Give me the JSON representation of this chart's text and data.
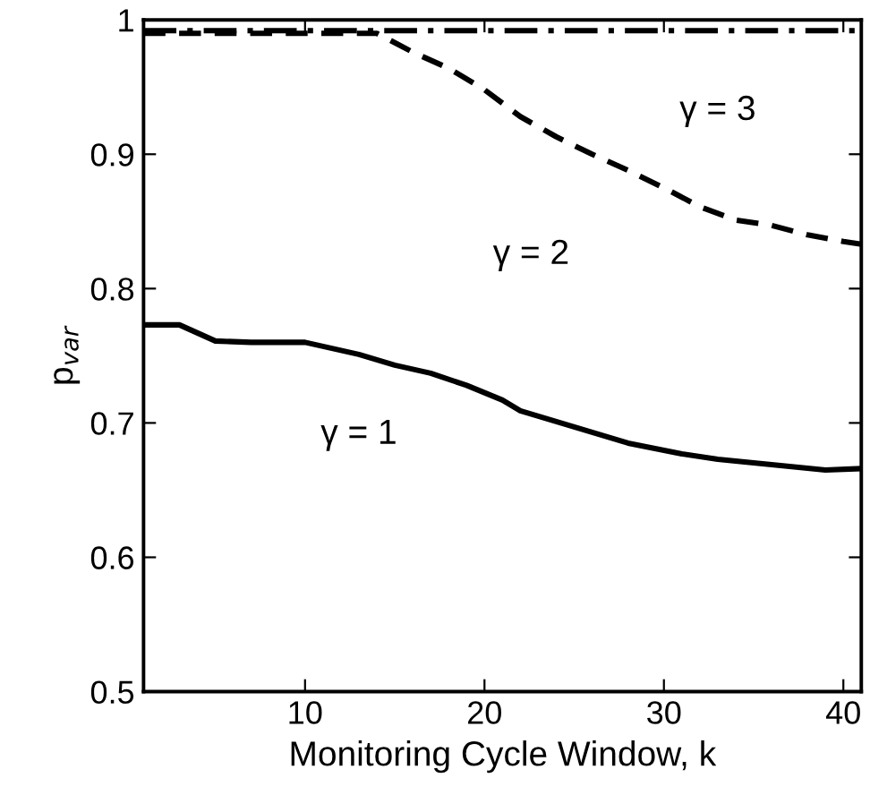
{
  "chart_data": {
    "type": "line",
    "xlabel": "Monitoring Cycle Window, k",
    "ylabel": "p$_{var}$",
    "xlim": [
      1,
      41
    ],
    "xticks": [
      10,
      20,
      30,
      40
    ],
    "ylim": [
      0.5,
      1
    ],
    "yticks": [
      0.5,
      0.6,
      0.7,
      0.8,
      0.9,
      1
    ],
    "grid": false,
    "marker": "none",
    "series": [
      {
        "name": "γ = 1",
        "color": "#000000",
        "line_style": "solid",
        "x": [
          1,
          3,
          5,
          7,
          10,
          13,
          15,
          17,
          19,
          21,
          22,
          25,
          28,
          31,
          33,
          36,
          39,
          41
        ],
        "values": [
          0.773,
          0.773,
          0.761,
          0.76,
          0.76,
          0.751,
          0.743,
          0.737,
          0.728,
          0.717,
          0.709,
          0.697,
          0.685,
          0.677,
          0.673,
          0.669,
          0.665,
          0.666
        ]
      },
      {
        "name": "γ = 2",
        "color": "#000000",
        "line_style": "dashed",
        "x": [
          1,
          14,
          16,
          18,
          20,
          22,
          24,
          26,
          28,
          30,
          32,
          34,
          36,
          38,
          40,
          41
        ],
        "values": [
          0.99,
          0.99,
          0.976,
          0.964,
          0.948,
          0.928,
          0.913,
          0.9,
          0.888,
          0.875,
          0.861,
          0.851,
          0.847,
          0.84,
          0.835,
          0.833
        ]
      },
      {
        "name": "γ = 3",
        "color": "#000000",
        "line_style": "dashdot",
        "x": [
          1,
          41
        ],
        "values": [
          0.992,
          0.992
        ]
      }
    ]
  }
}
